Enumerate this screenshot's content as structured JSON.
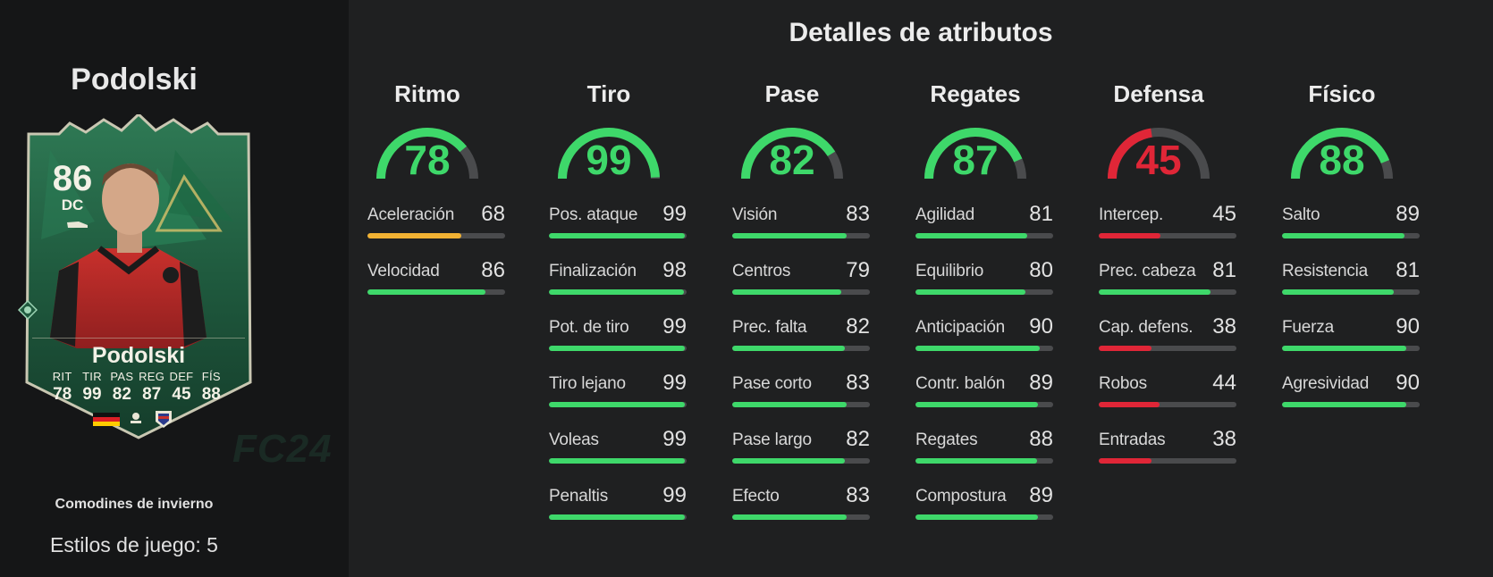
{
  "player": {
    "name": "Podolski",
    "rating": "86",
    "position": "DC",
    "card_name": "Podolski",
    "promo": "Comodines de invierno",
    "playstyles": "Estilos de juego: 5",
    "card_stats": [
      {
        "label": "RIT",
        "value": "78"
      },
      {
        "label": "TIR",
        "value": "99"
      },
      {
        "label": "PAS",
        "value": "82"
      },
      {
        "label": "REG",
        "value": "87"
      },
      {
        "label": "DEF",
        "value": "45"
      },
      {
        "label": "FÍS",
        "value": "88"
      }
    ]
  },
  "watermark": "FC24",
  "title": "Detalles de atributos",
  "colors": {
    "green": "#3ed86a",
    "red": "#e02637",
    "yellow": "#f2b233",
    "track": "#4a4b4d"
  },
  "categories": [
    {
      "name": "Ritmo",
      "value": "78",
      "level": 78,
      "color": "green",
      "stats": [
        {
          "name": "Aceleración",
          "value": "68",
          "level": 68,
          "color": "yellow"
        },
        {
          "name": "Velocidad",
          "value": "86",
          "level": 86,
          "color": "green"
        }
      ]
    },
    {
      "name": "Tiro",
      "value": "99",
      "level": 99,
      "color": "green",
      "stats": [
        {
          "name": "Pos. ataque",
          "value": "99",
          "level": 99,
          "color": "green"
        },
        {
          "name": "Finalización",
          "value": "98",
          "level": 98,
          "color": "green"
        },
        {
          "name": "Pot. de tiro",
          "value": "99",
          "level": 99,
          "color": "green"
        },
        {
          "name": "Tiro lejano",
          "value": "99",
          "level": 99,
          "color": "green"
        },
        {
          "name": "Voleas",
          "value": "99",
          "level": 99,
          "color": "green"
        },
        {
          "name": "Penaltis",
          "value": "99",
          "level": 99,
          "color": "green"
        }
      ]
    },
    {
      "name": "Pase",
      "value": "82",
      "level": 82,
      "color": "green",
      "stats": [
        {
          "name": "Visión",
          "value": "83",
          "level": 83,
          "color": "green"
        },
        {
          "name": "Centros",
          "value": "79",
          "level": 79,
          "color": "green"
        },
        {
          "name": "Prec. falta",
          "value": "82",
          "level": 82,
          "color": "green"
        },
        {
          "name": "Pase corto",
          "value": "83",
          "level": 83,
          "color": "green"
        },
        {
          "name": "Pase largo",
          "value": "82",
          "level": 82,
          "color": "green"
        },
        {
          "name": "Efecto",
          "value": "83",
          "level": 83,
          "color": "green"
        }
      ]
    },
    {
      "name": "Regates",
      "value": "87",
      "level": 87,
      "color": "green",
      "stats": [
        {
          "name": "Agilidad",
          "value": "81",
          "level": 81,
          "color": "green"
        },
        {
          "name": "Equilibrio",
          "value": "80",
          "level": 80,
          "color": "green"
        },
        {
          "name": "Anticipación",
          "value": "90",
          "level": 90,
          "color": "green"
        },
        {
          "name": "Contr. balón",
          "value": "89",
          "level": 89,
          "color": "green"
        },
        {
          "name": "Regates",
          "value": "88",
          "level": 88,
          "color": "green"
        },
        {
          "name": "Compostura",
          "value": "89",
          "level": 89,
          "color": "green"
        }
      ]
    },
    {
      "name": "Defensa",
      "value": "45",
      "level": 45,
      "color": "red",
      "stats": [
        {
          "name": "Intercep.",
          "value": "45",
          "level": 45,
          "color": "red"
        },
        {
          "name": "Prec. cabeza",
          "value": "81",
          "level": 81,
          "color": "green"
        },
        {
          "name": "Cap. defens.",
          "value": "38",
          "level": 38,
          "color": "red"
        },
        {
          "name": "Robos",
          "value": "44",
          "level": 44,
          "color": "red"
        },
        {
          "name": "Entradas",
          "value": "38",
          "level": 38,
          "color": "red"
        }
      ]
    },
    {
      "name": "Físico",
      "value": "88",
      "level": 88,
      "color": "green",
      "stats": [
        {
          "name": "Salto",
          "value": "89",
          "level": 89,
          "color": "green"
        },
        {
          "name": "Resistencia",
          "value": "81",
          "level": 81,
          "color": "green"
        },
        {
          "name": "Fuerza",
          "value": "90",
          "level": 90,
          "color": "green"
        },
        {
          "name": "Agresividad",
          "value": "90",
          "level": 90,
          "color": "green"
        }
      ]
    }
  ]
}
